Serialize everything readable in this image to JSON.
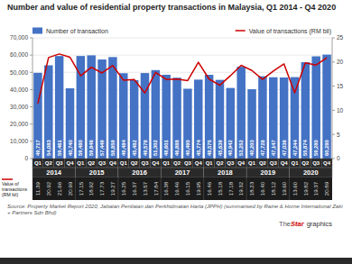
{
  "chart_data": {
    "type": "bar",
    "title": "Number and value of residential property transactions in Malaysia, Q1 2014 - Q4 2020",
    "categories": [
      "Q1",
      "Q2",
      "Q3",
      "Q4",
      "Q1",
      "Q2",
      "Q3",
      "Q4",
      "Q1",
      "Q2",
      "Q3",
      "Q4",
      "Q1",
      "Q2",
      "Q3",
      "Q4",
      "Q1",
      "Q2",
      "Q3",
      "Q4",
      "Q1",
      "Q2",
      "Q3",
      "Q4",
      "Q1",
      "Q2",
      "Q3",
      "Q4"
    ],
    "groups": [
      "2014",
      "2015",
      "2016",
      "2017",
      "2018",
      "2019",
      "2020"
    ],
    "series": [
      {
        "name": "Number of transaction",
        "type": "bar",
        "color": "#4472C4",
        "values": [
          49717,
          54083,
          59461,
          40740,
          59480,
          59846,
          57449,
          58859,
          49484,
          45482,
          49578,
          51302,
          48601,
          46888,
          40490,
          45774,
          48575,
          45639,
          40942,
          53252,
          40203,
          47728,
          47147,
          47036,
          47244,
          55874,
          59280,
          60280
        ],
        "value_labels": [
          "49,717",
          "54,083",
          "59,461",
          "40,740",
          "59,480",
          "59,846",
          "57,449",
          "58,859",
          "49,484",
          "45,482",
          "49,578",
          "51,302",
          "48,601",
          "46,888",
          "40,490",
          "45,774",
          "48,575",
          "45,639",
          "40,942",
          "53,252",
          "40,203",
          "47,728",
          "47,147",
          "47,036",
          "47,244",
          "55,874",
          "59,280",
          "60,280"
        ]
      },
      {
        "name": "Value of transactions (RM bil)",
        "type": "line",
        "color": "#CC0000",
        "axis": "y2",
        "values": [
          11.39,
          20.92,
          21.66,
          20.99,
          17.15,
          18.92,
          17.73,
          19.27,
          16.25,
          16.37,
          13.57,
          17.84,
          16.38,
          16.46,
          16.15,
          19.95,
          16.46,
          15.18,
          17.18,
          19.32,
          18.23,
          16.4,
          18.12,
          19.6,
          13.6,
          19.82,
          19.37,
          20.89
        ],
        "value_labels": [
          "11.39",
          "20.92",
          "21.66",
          "20.99",
          "17.15",
          "18.92",
          "17.73",
          "19.27",
          "16.25",
          "16.37",
          "13.57",
          "17.84",
          "16.38",
          "16.46",
          "16.15",
          "19.95",
          "16.46",
          "15.18",
          "17.18",
          "19.32",
          "18.23",
          "16.40",
          "18.12",
          "19.60",
          "13.60",
          "19.82",
          "19.37",
          "20.89"
        ]
      }
    ],
    "ylim": [
      0,
      70000
    ],
    "yticks": [
      0,
      {
        "value": 10000,
        "label": "10,000"
      },
      {
        "value": 20000,
        "label": "20,000"
      },
      {
        "value": 30000,
        "label": "30,000"
      },
      {
        "value": 40000,
        "label": "40,000"
      },
      {
        "value": 50000,
        "label": "50,000"
      },
      {
        "value": 60000,
        "label": "60,000"
      },
      {
        "value": 70000,
        "label": "70,000"
      }
    ],
    "y2lim": [
      0,
      25
    ],
    "y2ticks": [
      0,
      5,
      10,
      15,
      20,
      25
    ],
    "grid": true,
    "legend": "top",
    "data_labels": true,
    "table_label": "Value of\ntransactions\n(RM bil)",
    "annotations": [
      "Source: Property Market Report 2020, Jabatan Penilaian dan Perkhidmatan Harta (JPPH) (summarised by Raine & Horne International Zaki + Partners Sdn Bhd)",
      "The",
      "Star",
      "graphics"
    ]
  }
}
